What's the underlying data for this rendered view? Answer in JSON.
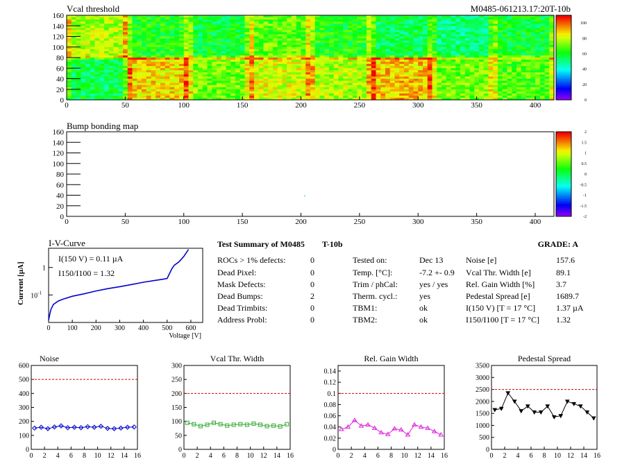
{
  "header": {
    "map_title": "Vcal threshold",
    "module_id": "M0485-061213.17:20T-10b",
    "bump_title": "Bump bonding map"
  },
  "iv": {
    "title": "I-V-Curve",
    "ylabel": "Current [µA]",
    "xlabel": "Voltage [V]",
    "annot1": "I(150 V) = 0.11 µA",
    "annot2": "I150/I100 = 1.32"
  },
  "summary": {
    "title": "Test Summary of M0485",
    "test": "T-10b",
    "grade": "GRADE:  A",
    "left": [
      {
        "label": "ROCs > 1% defects:",
        "value": "0"
      },
      {
        "label": "Dead Pixel:",
        "value": "0"
      },
      {
        "label": "Mask Defects:",
        "value": "0"
      },
      {
        "label": "Dead Bumps:",
        "value": "2"
      },
      {
        "label": "Dead Trimbits:",
        "value": "0"
      },
      {
        "label": "Address Probl:",
        "value": "0"
      }
    ],
    "middle": [
      {
        "label": "Tested on:",
        "value": "Dec 13"
      },
      {
        "label": "Temp. [°C]:",
        "value": "-7.2 +- 0.9"
      },
      {
        "label": "Trim / phCal:",
        "value": "yes / yes"
      },
      {
        "label": "Therm. cycl.:",
        "value": "yes"
      },
      {
        "label": "TBM1:",
        "value": "ok"
      },
      {
        "label": "TBM2:",
        "value": "ok"
      }
    ],
    "right": [
      {
        "label": "Noise [e]",
        "value": "157.6"
      },
      {
        "label": "Vcal Thr. Width [e]",
        "value": "89.1"
      },
      {
        "label": "Rel. Gain Width [%]",
        "value": "3.7"
      },
      {
        "label": "Pedestal Spread [e]",
        "value": "1689.7"
      },
      {
        "label": "I(150 V) [T = 17 °C]",
        "value": "1.37 µA"
      },
      {
        "label": "I150/I100   [T = 17 °C]",
        "value": "1.32"
      }
    ]
  },
  "colors": {
    "noise": "#0000cc",
    "vcal": "#33aa33",
    "gain": "#dd22dd",
    "pedestal": "#000000",
    "limit": "#cc0000",
    "iv": "#0000cc"
  },
  "chart_data": [
    {
      "type": "heatmap",
      "title": "Vcal threshold",
      "xlim": [
        0,
        416
      ],
      "ylim": [
        0,
        160
      ],
      "xticks": [
        0,
        50,
        100,
        150,
        200,
        250,
        300,
        350,
        400
      ],
      "yticks": [
        0,
        20,
        40,
        60,
        80,
        100,
        120,
        140,
        160
      ],
      "zlim": [
        0,
        110
      ],
      "zticks": [
        0,
        20,
        40,
        60,
        80,
        100
      ],
      "roc_values_top": [
        78,
        62,
        58,
        70,
        62,
        55,
        52,
        58
      ],
      "roc_values_bottom": [
        55,
        88,
        72,
        82,
        78,
        90,
        72,
        68
      ]
    },
    {
      "type": "heatmap",
      "title": "Bump bonding map",
      "xlim": [
        0,
        416
      ],
      "ylim": [
        0,
        160
      ],
      "xticks": [
        0,
        50,
        100,
        150,
        200,
        250,
        300,
        350,
        400
      ],
      "yticks": [
        0,
        20,
        40,
        60,
        80,
        100,
        120,
        140,
        160
      ],
      "zlim": [
        -2,
        2
      ],
      "zticks": [
        -2,
        -1.5,
        -1,
        -0.5,
        0,
        0.5,
        1,
        1.5,
        2
      ]
    },
    {
      "type": "line",
      "title": "I-V-Curve",
      "xlabel": "Voltage [V]",
      "ylabel": "Current [µA]",
      "xlim": [
        0,
        650
      ],
      "ylim": [
        0.01,
        5
      ],
      "yscale": "log",
      "xticks": [
        0,
        100,
        200,
        300,
        400,
        500,
        600
      ],
      "x": [
        0,
        5,
        10,
        20,
        40,
        60,
        100,
        150,
        200,
        250,
        300,
        350,
        400,
        450,
        480,
        500,
        510,
        520,
        530,
        550,
        570,
        590
      ],
      "y": [
        0.012,
        0.02,
        0.03,
        0.045,
        0.06,
        0.07,
        0.09,
        0.11,
        0.14,
        0.17,
        0.2,
        0.24,
        0.29,
        0.34,
        0.37,
        0.4,
        0.6,
        0.9,
        1.2,
        1.6,
        2.5,
        4.5
      ]
    },
    {
      "type": "line",
      "title": "Noise",
      "xlim": [
        0,
        16
      ],
      "ylim": [
        0,
        600
      ],
      "xticks": [
        0,
        2,
        4,
        6,
        8,
        10,
        12,
        14,
        16
      ],
      "yticks": [
        0,
        100,
        200,
        300,
        400,
        500,
        600
      ],
      "limit": 500,
      "x": [
        0.5,
        1.5,
        2.5,
        3.5,
        4.5,
        5.5,
        6.5,
        7.5,
        8.5,
        9.5,
        10.5,
        11.5,
        12.5,
        13.5,
        14.5,
        15.5
      ],
      "values": [
        152,
        158,
        148,
        160,
        168,
        155,
        158,
        155,
        162,
        158,
        165,
        150,
        148,
        152,
        158,
        160
      ]
    },
    {
      "type": "line",
      "title": "Vcal Thr. Width",
      "xlim": [
        0,
        16
      ],
      "ylim": [
        0,
        300
      ],
      "xticks": [
        0,
        2,
        4,
        6,
        8,
        10,
        12,
        14,
        16
      ],
      "yticks": [
        0,
        50,
        100,
        150,
        200,
        250,
        300
      ],
      "limit": 200,
      "x": [
        0.5,
        1.5,
        2.5,
        3.5,
        4.5,
        5.5,
        6.5,
        7.5,
        8.5,
        9.5,
        10.5,
        11.5,
        12.5,
        13.5,
        14.5,
        15.5
      ],
      "values": [
        95,
        90,
        83,
        88,
        95,
        90,
        85,
        88,
        90,
        88,
        92,
        88,
        83,
        85,
        82,
        90
      ]
    },
    {
      "type": "line",
      "title": "Rel. Gain Width",
      "xlim": [
        0,
        16
      ],
      "ylim": [
        0,
        0.15
      ],
      "xticks": [
        0,
        2,
        4,
        6,
        8,
        10,
        12,
        14,
        16
      ],
      "yticks": [
        0,
        0.02,
        0.04,
        0.06,
        0.08,
        0.1,
        0.12,
        0.14
      ],
      "limit": 0.1,
      "x": [
        0.5,
        1.5,
        2.5,
        3.5,
        4.5,
        5.5,
        6.5,
        7.5,
        8.5,
        9.5,
        10.5,
        11.5,
        12.5,
        13.5,
        14.5,
        15.5
      ],
      "values": [
        0.036,
        0.04,
        0.052,
        0.042,
        0.044,
        0.038,
        0.03,
        0.027,
        0.037,
        0.035,
        0.026,
        0.044,
        0.04,
        0.038,
        0.032,
        0.026
      ]
    },
    {
      "type": "line",
      "title": "Pedestal Spread",
      "xlim": [
        0,
        16
      ],
      "ylim": [
        0,
        3500
      ],
      "xticks": [
        0,
        2,
        4,
        6,
        8,
        10,
        12,
        14,
        16
      ],
      "yticks": [
        0,
        500,
        1000,
        1500,
        2000,
        2500,
        3000,
        3500
      ],
      "limit": 2500,
      "x": [
        0.5,
        1.5,
        2.5,
        3.5,
        4.5,
        5.5,
        6.5,
        7.5,
        8.5,
        9.5,
        10.5,
        11.5,
        12.5,
        13.5,
        14.5,
        15.5
      ],
      "values": [
        1650,
        1700,
        2350,
        2000,
        1600,
        1800,
        1550,
        1550,
        1800,
        1350,
        1400,
        2000,
        1900,
        1800,
        1550,
        1300
      ]
    }
  ]
}
